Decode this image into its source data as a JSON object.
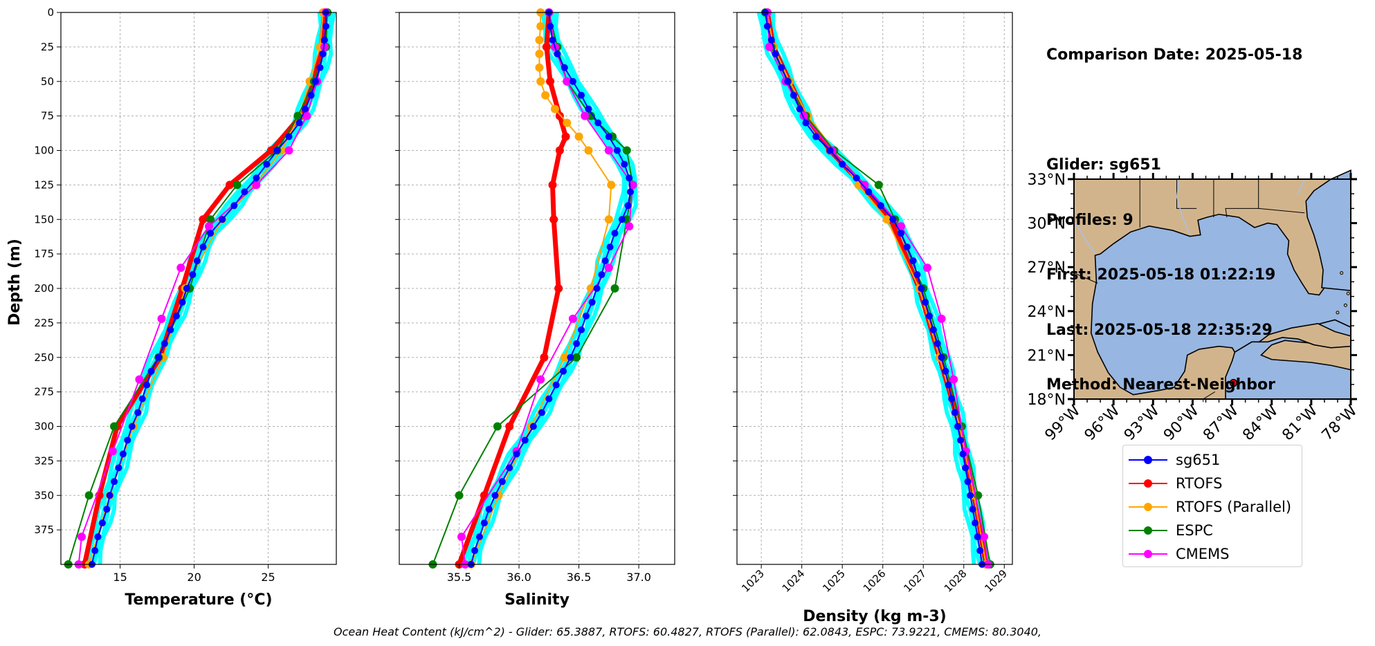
{
  "info": {
    "comparison_date": "Comparison Date: 2025-05-18",
    "glider": "Glider: sg651",
    "profiles": "Profiles: 9",
    "first": "First: 2025-05-18 01:22:19",
    "last": "Last: 2025-05-18 22:35:29",
    "method": "Method: Nearest-Neighbor"
  },
  "footer": "Ocean Heat Content (kJ/cm^2) - Glider: 65.3887,  RTOFS: 60.4827,  RTOFS (Parallel): 62.0843,  ESPC: 73.9221,  CMEMS: 80.3040,",
  "colors": {
    "sg651": "#0000ff",
    "RTOFS": "#ff0000",
    "RTOFS (Parallel)": "#ffa500",
    "ESPC": "#008000",
    "CMEMS": "#ff00ff",
    "glider_profiles": "#00ffff",
    "land": "#d2b48c",
    "ocean": "#97b6e1"
  },
  "legend": [
    "sg651",
    "RTOFS",
    "RTOFS (Parallel)",
    "ESPC",
    "CMEMS"
  ],
  "chart_data": [
    {
      "type": "line",
      "xlabel": "Temperature (°C)",
      "ylabel": "Depth (m)",
      "xlim": [
        11.0,
        29.6
      ],
      "ylim": [
        400,
        0
      ],
      "xticks": [
        15,
        20,
        25
      ],
      "yticks": [
        0,
        25,
        50,
        75,
        100,
        125,
        150,
        175,
        200,
        225,
        250,
        275,
        300,
        325,
        350,
        375
      ],
      "grid": true,
      "series": [
        {
          "name": "sg651",
          "depth": [
            0,
            10,
            20,
            30,
            40,
            50,
            60,
            70,
            80,
            90,
            100,
            110,
            120,
            130,
            140,
            150,
            160,
            170,
            180,
            190,
            200,
            210,
            220,
            230,
            240,
            250,
            260,
            270,
            280,
            290,
            300,
            310,
            320,
            330,
            340,
            350,
            360,
            370,
            380,
            390,
            400
          ],
          "values": [
            28.9,
            28.9,
            28.8,
            28.7,
            28.5,
            28.2,
            27.9,
            27.5,
            27.1,
            26.4,
            25.6,
            24.9,
            24.2,
            23.4,
            22.7,
            21.9,
            21.1,
            20.6,
            20.2,
            19.9,
            19.5,
            19.2,
            18.8,
            18.4,
            18.0,
            17.6,
            17.1,
            16.8,
            16.5,
            16.2,
            15.8,
            15.5,
            15.2,
            14.9,
            14.6,
            14.3,
            14.1,
            13.8,
            13.5,
            13.3,
            13.1
          ]
        },
        {
          "name": "RTOFS",
          "depth": [
            0,
            25,
            50,
            75,
            100,
            125,
            150,
            200,
            250,
            300,
            350,
            400
          ],
          "values": [
            28.8,
            28.6,
            28.1,
            27.2,
            25.2,
            22.4,
            20.6,
            19.2,
            17.7,
            14.8,
            13.6,
            12.6
          ]
        },
        {
          "name": "RTOFS (Parallel)",
          "depth": [
            0,
            25,
            50,
            75,
            100,
            125,
            150,
            200,
            250,
            300,
            350,
            400
          ],
          "values": [
            28.7,
            28.5,
            27.8,
            27.1,
            25.9,
            24.1,
            21.9,
            19.4,
            17.9,
            15.9,
            14.3,
            12.9
          ]
        },
        {
          "name": "ESPC",
          "depth": [
            0,
            25,
            50,
            75,
            100,
            125,
            150,
            200,
            250,
            300,
            350,
            400
          ],
          "values": [
            29.0,
            28.9,
            28.1,
            27.0,
            25.6,
            22.9,
            21.1,
            19.7,
            17.6,
            14.6,
            12.9,
            11.5
          ]
        },
        {
          "name": "CMEMS",
          "depth": [
            0,
            25,
            50,
            75,
            100,
            125,
            155,
            185,
            222,
            266,
            318,
            380,
            400
          ],
          "values": [
            28.9,
            28.8,
            28.3,
            27.6,
            26.4,
            24.2,
            21.0,
            19.1,
            17.8,
            16.3,
            14.5,
            12.4,
            12.2
          ]
        }
      ]
    },
    {
      "type": "line",
      "xlabel": "Salinity",
      "xlim": [
        35.0,
        37.3
      ],
      "ylim": [
        400,
        0
      ],
      "xticks": [
        35.5,
        36.0,
        36.5,
        37.0
      ],
      "grid": true,
      "series": [
        {
          "name": "sg651",
          "depth": [
            0,
            10,
            20,
            30,
            40,
            50,
            60,
            70,
            80,
            90,
            100,
            110,
            120,
            130,
            140,
            150,
            160,
            170,
            180,
            190,
            200,
            210,
            220,
            230,
            240,
            250,
            260,
            270,
            280,
            290,
            300,
            310,
            320,
            330,
            340,
            350,
            360,
            370,
            380,
            390,
            400
          ],
          "values": [
            36.25,
            36.26,
            36.28,
            36.32,
            36.38,
            36.45,
            36.52,
            36.58,
            36.66,
            36.75,
            36.82,
            36.88,
            36.92,
            36.93,
            36.91,
            36.86,
            36.8,
            36.76,
            36.72,
            36.69,
            36.65,
            36.61,
            36.56,
            36.52,
            36.48,
            36.43,
            36.37,
            36.31,
            36.25,
            36.19,
            36.12,
            36.05,
            35.98,
            35.92,
            35.86,
            35.8,
            35.75,
            35.71,
            35.67,
            35.63,
            35.6
          ]
        },
        {
          "name": "RTOFS",
          "depth": [
            0,
            25,
            50,
            75,
            90,
            100,
            125,
            150,
            200,
            250,
            300,
            350,
            400
          ],
          "values": [
            36.25,
            36.23,
            36.26,
            36.34,
            36.39,
            36.34,
            36.28,
            36.29,
            36.33,
            36.21,
            35.92,
            35.71,
            35.5
          ]
        },
        {
          "name": "RTOFS (Parallel)",
          "depth": [
            0,
            10,
            20,
            30,
            40,
            50,
            60,
            70,
            80,
            90,
            100,
            125,
            150,
            200,
            250,
            300,
            350,
            400
          ],
          "values": [
            36.18,
            36.18,
            36.17,
            36.17,
            36.17,
            36.18,
            36.22,
            36.3,
            36.4,
            36.5,
            36.58,
            36.77,
            36.75,
            36.6,
            36.38,
            36.1,
            35.83,
            35.6
          ]
        },
        {
          "name": "ESPC",
          "depth": [
            0,
            25,
            50,
            75,
            90,
            100,
            125,
            150,
            200,
            250,
            300,
            350,
            400
          ],
          "values": [
            36.25,
            36.32,
            36.4,
            36.6,
            36.78,
            36.9,
            36.95,
            36.9,
            36.8,
            36.48,
            35.82,
            35.5,
            35.28
          ]
        },
        {
          "name": "CMEMS",
          "depth": [
            0,
            25,
            50,
            75,
            100,
            125,
            155,
            185,
            222,
            266,
            318,
            380,
            400
          ],
          "values": [
            36.25,
            36.3,
            36.4,
            36.55,
            36.75,
            36.95,
            36.92,
            36.75,
            36.45,
            36.18,
            35.98,
            35.52,
            35.55
          ]
        }
      ]
    },
    {
      "type": "line",
      "xlabel": "Density (kg m-3)",
      "xlim": [
        1022.4,
        1029.2
      ],
      "ylim": [
        400,
        0
      ],
      "xticks": [
        1023,
        1024,
        1025,
        1026,
        1027,
        1028,
        1029
      ],
      "grid": true,
      "series": [
        {
          "name": "sg651",
          "depth": [
            0,
            10,
            20,
            30,
            40,
            50,
            60,
            70,
            80,
            90,
            100,
            110,
            120,
            130,
            140,
            150,
            160,
            170,
            180,
            190,
            200,
            210,
            220,
            230,
            240,
            250,
            260,
            270,
            280,
            290,
            300,
            310,
            320,
            330,
            340,
            350,
            360,
            370,
            380,
            390,
            400
          ],
          "values": [
            1023.1,
            1023.15,
            1023.25,
            1023.35,
            1023.5,
            1023.65,
            1023.8,
            1023.95,
            1024.1,
            1024.35,
            1024.7,
            1025.0,
            1025.35,
            1025.65,
            1025.95,
            1026.25,
            1026.45,
            1026.6,
            1026.75,
            1026.85,
            1026.95,
            1027.05,
            1027.15,
            1027.25,
            1027.35,
            1027.45,
            1027.55,
            1027.62,
            1027.7,
            1027.78,
            1027.85,
            1027.92,
            1027.98,
            1028.04,
            1028.1,
            1028.16,
            1028.22,
            1028.28,
            1028.34,
            1028.4,
            1028.45
          ]
        },
        {
          "name": "RTOFS",
          "depth": [
            0,
            25,
            50,
            75,
            100,
            125,
            150,
            200,
            250,
            300,
            350,
            400
          ],
          "values": [
            1023.15,
            1023.3,
            1023.7,
            1024.1,
            1024.7,
            1025.5,
            1026.2,
            1026.9,
            1027.4,
            1027.9,
            1028.25,
            1028.55
          ]
        },
        {
          "name": "RTOFS (Parallel)",
          "depth": [
            0,
            25,
            50,
            75,
            100,
            125,
            150,
            200,
            250,
            300,
            350,
            400
          ],
          "values": [
            1023.15,
            1023.3,
            1023.7,
            1024.15,
            1024.8,
            1025.4,
            1026.1,
            1026.9,
            1027.4,
            1027.9,
            1028.25,
            1028.55
          ]
        },
        {
          "name": "ESPC",
          "depth": [
            0,
            25,
            50,
            75,
            100,
            125,
            150,
            200,
            250,
            300,
            350,
            400
          ],
          "values": [
            1023.1,
            1023.25,
            1023.65,
            1024.1,
            1024.8,
            1025.9,
            1026.3,
            1027.0,
            1027.5,
            1027.95,
            1028.35,
            1028.65
          ]
        },
        {
          "name": "CMEMS",
          "depth": [
            0,
            25,
            50,
            75,
            100,
            125,
            155,
            185,
            222,
            266,
            318,
            380,
            400
          ],
          "values": [
            1023.15,
            1023.2,
            1023.6,
            1024.05,
            1024.75,
            1025.55,
            1026.45,
            1027.1,
            1027.45,
            1027.75,
            1028.05,
            1028.5,
            1028.6
          ]
        }
      ]
    },
    {
      "type": "map",
      "xticks": [
        "99°W",
        "96°W",
        "93°W",
        "90°W",
        "87°W",
        "84°W",
        "81°W",
        "78°W"
      ],
      "yticks": [
        "18°N",
        "21°N",
        "24°N",
        "27°N",
        "30°N",
        "33°N"
      ],
      "lon_range": [
        -99,
        -78
      ],
      "lat_range": [
        18,
        33
      ],
      "marker": {
        "lon": -86.9,
        "lat": 19.1
      }
    }
  ]
}
